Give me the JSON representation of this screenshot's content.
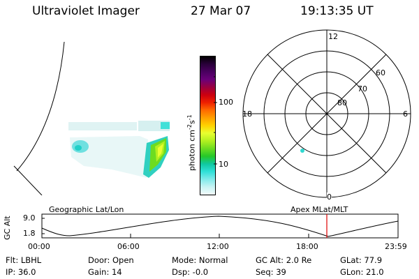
{
  "header": {
    "instrument": "Ultraviolet Imager",
    "date": "27 Mar 07",
    "time": "19:13:35 UT"
  },
  "colorbar": {
    "label_main": "photon cm",
    "label_exp1": "-2",
    "label_mid": "s",
    "label_exp2": "-1",
    "ticks": [
      "100",
      "10"
    ],
    "colors": [
      "#000000",
      "#2a003a",
      "#4a0060",
      "#6a007a",
      "#9a0040",
      "#cc0010",
      "#ee2000",
      "#ff6a00",
      "#ff9f00",
      "#ffd200",
      "#e8ff30",
      "#b2f020",
      "#6ddc20",
      "#25c828",
      "#10c8a0",
      "#30e0d8",
      "#80eaea",
      "#c8f3f3",
      "#f2fbfb"
    ]
  },
  "polar": {
    "mlt_labels": {
      "top": "12",
      "left": "18",
      "right": "6",
      "bottom": "0"
    },
    "lat_labels": [
      "60",
      "70",
      "80"
    ]
  },
  "timeline": {
    "left_label": "Geographic Lat/Lon",
    "right_label": "Apex MLat/MLT",
    "y_axis_label": "GC Alt",
    "y_ticks": [
      "9.0",
      "1.8"
    ],
    "x_ticks": [
      "00:00",
      "06:00",
      "12:00",
      "18:00",
      "23:59"
    ],
    "current_time_color": "#e00000"
  },
  "info": {
    "filter": "Flt: LBHL",
    "ip": "IP: 36.0",
    "door": "Door: Open",
    "gain": "Gain: 14",
    "mode": "Mode: Normal",
    "dsp": "Dsp:   -0.0",
    "gc_alt": "GC Alt: 2.0 Re",
    "seq": "Seq: 39",
    "glat": "GLat:  77.9",
    "glon": "GLon:  21.0"
  }
}
